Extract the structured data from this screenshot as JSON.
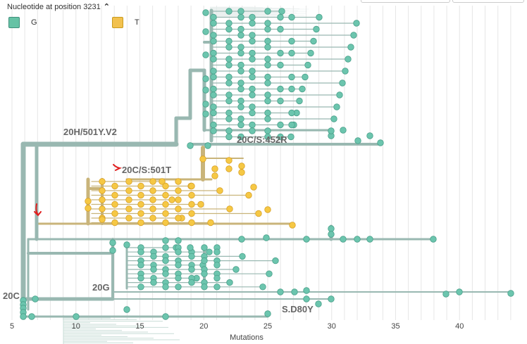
{
  "legend": {
    "title": "Nucleotide at position 3231",
    "items": [
      {
        "label": "G",
        "color": "#66c2a5"
      },
      {
        "label": "T",
        "color": "#f2c14e"
      }
    ]
  },
  "colors": {
    "g_node": "#6cc5ae",
    "g_stroke": "#4aa08a",
    "t_node": "#f6c844",
    "t_stroke": "#d8a22a",
    "branch_g": "#99b8b1",
    "branch_t": "#c9b47a",
    "grid": "#e6e6e6",
    "arrow": "#e02020"
  },
  "clade_labels": [
    "20H/501Y.V2",
    "20C/S:452R",
    "20C/S:501T",
    "20G",
    "20C",
    "S.D80Y"
  ],
  "axis": {
    "label": "Mutations",
    "ticks": [
      "5",
      "10",
      "15",
      "20",
      "25",
      "30",
      "35",
      "40"
    ],
    "tick_values": [
      5,
      10,
      15,
      20,
      25,
      30,
      35,
      40
    ],
    "range": [
      5,
      45
    ]
  }
}
